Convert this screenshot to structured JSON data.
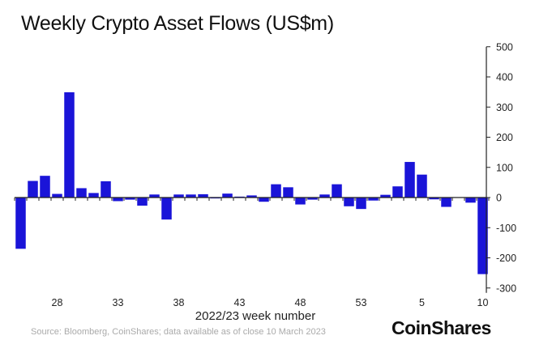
{
  "chart_data": {
    "type": "bar",
    "title": "Weekly Crypto Asset Flows (US$m)",
    "xlabel": "2022/23 week number",
    "ylabel": "",
    "ylim": [
      -300,
      500
    ],
    "yticks": [
      500,
      400,
      300,
      200,
      100,
      0,
      -100,
      -200,
      -300
    ],
    "y_axis_position": "right",
    "grid": false,
    "bar_color": "#1a14d8",
    "categories": [
      "25",
      "26",
      "27",
      "28",
      "29",
      "30",
      "31",
      "32",
      "33",
      "34",
      "35",
      "36",
      "37",
      "38",
      "39",
      "40",
      "41",
      "42",
      "43",
      "44",
      "45",
      "46",
      "47",
      "48",
      "49",
      "50",
      "51",
      "52",
      "53",
      "1",
      "2",
      "3",
      "4",
      "5",
      "6",
      "7",
      "8",
      "9",
      "10"
    ],
    "xtick_labels": [
      "28",
      "33",
      "38",
      "43",
      "48",
      "53",
      "5",
      "10"
    ],
    "values": [
      -170,
      55,
      72,
      12,
      349,
      31,
      15,
      54,
      -12,
      -7,
      -27,
      10,
      -73,
      10,
      10,
      11,
      -3,
      13,
      3,
      7,
      -14,
      44,
      34,
      -23,
      -7,
      10,
      44,
      -29,
      -38,
      -10,
      9,
      37,
      118,
      76,
      -6,
      -31,
      0,
      -17,
      -254
    ]
  },
  "source": "Source: Bloomberg, CoinShares; data available as of close 10 March 2023",
  "logo": "CoinShares"
}
